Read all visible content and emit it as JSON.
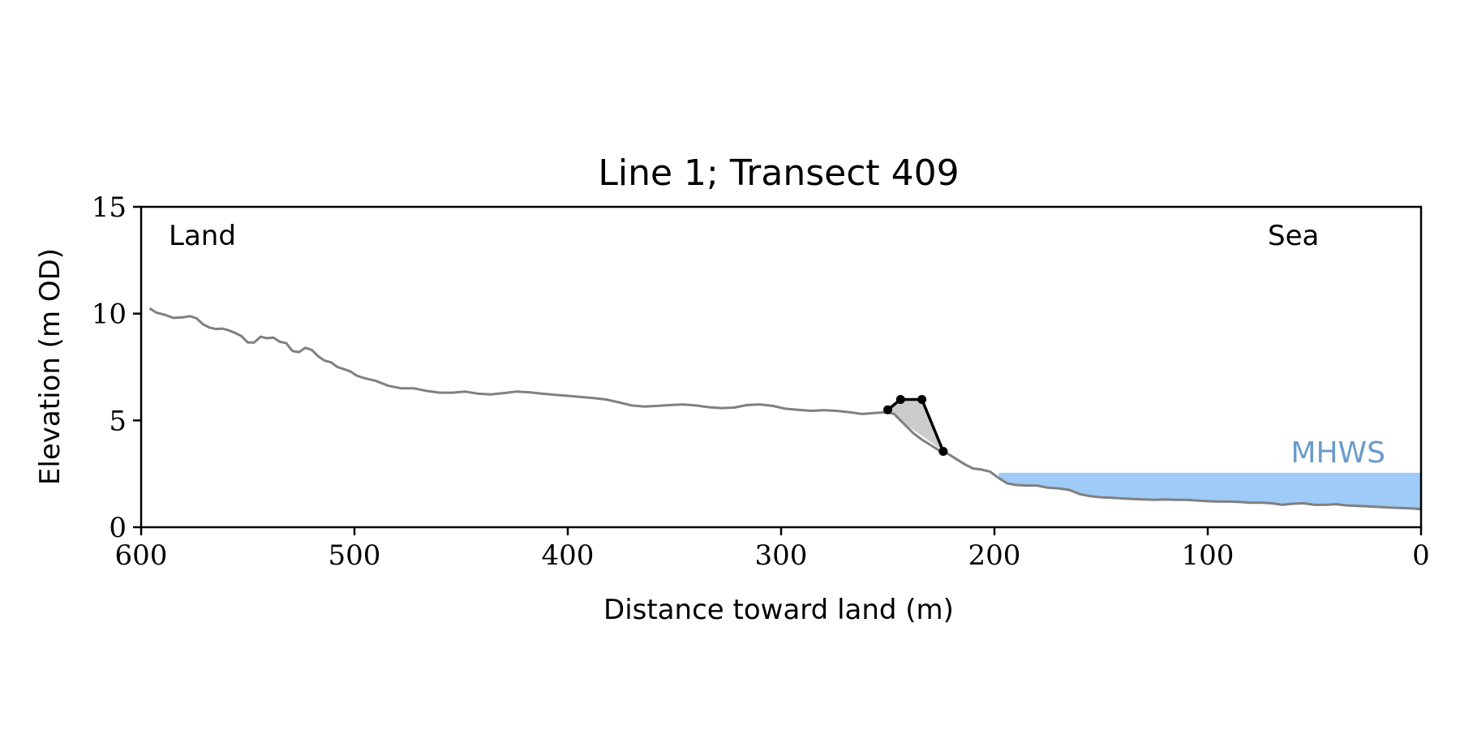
{
  "chart_data": {
    "type": "line",
    "title": "Line 1; Transect 409",
    "xlabel": "Distance toward land (m)",
    "ylabel": "Elevation (m OD)",
    "xlim": [
      600,
      0
    ],
    "ylim": [
      0,
      15
    ],
    "x_ticks": [
      600,
      500,
      400,
      300,
      200,
      100,
      0
    ],
    "y_ticks": [
      0,
      5,
      10,
      15
    ],
    "grid": false,
    "annotations": {
      "left": "Land",
      "right": "Sea",
      "mhws": "MHWS"
    },
    "colors": {
      "profile": "#808080",
      "feature": "#000000",
      "fill": "#cccccc",
      "mhws": "#9ecbf7",
      "mhws_text": "#6a9bcb",
      "axes": "#000000"
    },
    "mhws": {
      "level": 2.55,
      "x_start": 198,
      "x_end": 0
    },
    "series": [
      {
        "role": "profile",
        "x": [
          596,
          593,
          589,
          585,
          581,
          577,
          574,
          571,
          568,
          565,
          562,
          559,
          556,
          553,
          550,
          547,
          544,
          541,
          538,
          535,
          532,
          529,
          526,
          523,
          520,
          517,
          514,
          511,
          508,
          505,
          502,
          499,
          496,
          490,
          484,
          478,
          472,
          466,
          460,
          454,
          448,
          442,
          436,
          430,
          424,
          418,
          412,
          406,
          400,
          394,
          388,
          382,
          376,
          370,
          364,
          358,
          352,
          346,
          340,
          334,
          328,
          322,
          316,
          310,
          304,
          298,
          292,
          286,
          280,
          274,
          268,
          262,
          256,
          250,
          247,
          242,
          238,
          234,
          230,
          226,
          222,
          218,
          214,
          210,
          206,
          202,
          198,
          194,
          190,
          185,
          180,
          175,
          170,
          165,
          160,
          155,
          150,
          145,
          140,
          135,
          130,
          125,
          120,
          115,
          110,
          105,
          100,
          95,
          90,
          85,
          80,
          75,
          70,
          65,
          60,
          55,
          50,
          45,
          40,
          35,
          30,
          25,
          20,
          15,
          10,
          5,
          0
        ],
        "y": [
          10.25,
          10.05,
          9.95,
          9.8,
          9.82,
          9.88,
          9.78,
          9.5,
          9.35,
          9.28,
          9.3,
          9.22,
          9.1,
          8.95,
          8.65,
          8.65,
          8.92,
          8.85,
          8.88,
          8.68,
          8.62,
          8.25,
          8.2,
          8.4,
          8.3,
          8.0,
          7.8,
          7.72,
          7.5,
          7.4,
          7.3,
          7.1,
          7.0,
          6.85,
          6.62,
          6.5,
          6.5,
          6.38,
          6.3,
          6.3,
          6.35,
          6.25,
          6.22,
          6.28,
          6.35,
          6.32,
          6.25,
          6.2,
          6.15,
          6.1,
          6.05,
          5.98,
          5.85,
          5.7,
          5.65,
          5.68,
          5.72,
          5.75,
          5.7,
          5.62,
          5.58,
          5.6,
          5.72,
          5.75,
          5.68,
          5.55,
          5.5,
          5.45,
          5.48,
          5.45,
          5.38,
          5.3,
          5.35,
          5.38,
          5.3,
          4.8,
          4.4,
          4.1,
          3.85,
          3.6,
          3.45,
          3.2,
          2.95,
          2.75,
          2.7,
          2.6,
          2.3,
          2.05,
          1.98,
          1.95,
          1.95,
          1.85,
          1.82,
          1.75,
          1.55,
          1.45,
          1.4,
          1.38,
          1.35,
          1.32,
          1.3,
          1.28,
          1.3,
          1.28,
          1.28,
          1.25,
          1.22,
          1.2,
          1.2,
          1.18,
          1.15,
          1.15,
          1.12,
          1.05,
          1.1,
          1.12,
          1.05,
          1.05,
          1.08,
          1.02,
          1.0,
          0.98,
          0.95,
          0.92,
          0.9,
          0.88,
          0.85
        ]
      },
      {
        "role": "feature",
        "x": [
          250,
          244,
          234,
          224
        ],
        "y": [
          5.5,
          5.98,
          5.98,
          3.55
        ]
      },
      {
        "role": "fill",
        "x": [
          250,
          244,
          234,
          224,
          230,
          240,
          248
        ],
        "y": [
          5.5,
          5.98,
          5.98,
          3.55,
          4.0,
          4.7,
          5.3
        ]
      }
    ]
  }
}
